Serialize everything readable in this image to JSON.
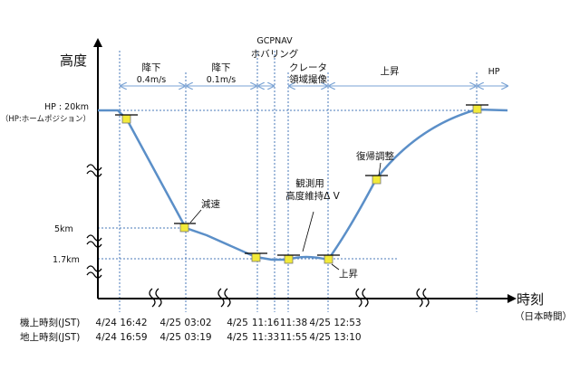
{
  "axes": {
    "y_label": "高度",
    "x_label": "時刻",
    "x_label_sub": "（日本時間）"
  },
  "y_levels": {
    "hp_label": "HP : 20km",
    "hp_sub": "（HP:ホームポジション）",
    "mid_label": "5km",
    "low_label": "1.7km"
  },
  "phases": {
    "descent1": "降下",
    "descent1_rate": "0.4m/s",
    "descent2": "降下",
    "descent2_rate": "0.1m/s",
    "hover_line1": "GCPNAV",
    "hover_line2": "ホバリング",
    "crater_line1": "クレータ",
    "crater_line2": "領域撮像",
    "ascent": "上昇",
    "hp": "HP"
  },
  "annotations": {
    "decel": "減速",
    "obs_line1": "観測用",
    "obs_line2": "高度維持Δ V",
    "ascent_start": "上昇",
    "recovery": "復帰調整"
  },
  "time_rows": {
    "onboard_label": "機上時刻(JST)",
    "ground_label": "地上時刻(JST)",
    "onboard": [
      "4/24 16:42",
      "4/25 03:02",
      "4/25",
      "11:16",
      "11:38",
      "4/25 12:53"
    ],
    "ground": [
      "4/24 16:59",
      "4/25 03:19",
      "4/25",
      "11:33",
      "11:55",
      "4/25 13:10"
    ]
  },
  "colors": {
    "trajectory": "#5b8fc8",
    "marker_fill": "#f2ea3a",
    "guide": "#4a78b8"
  }
}
